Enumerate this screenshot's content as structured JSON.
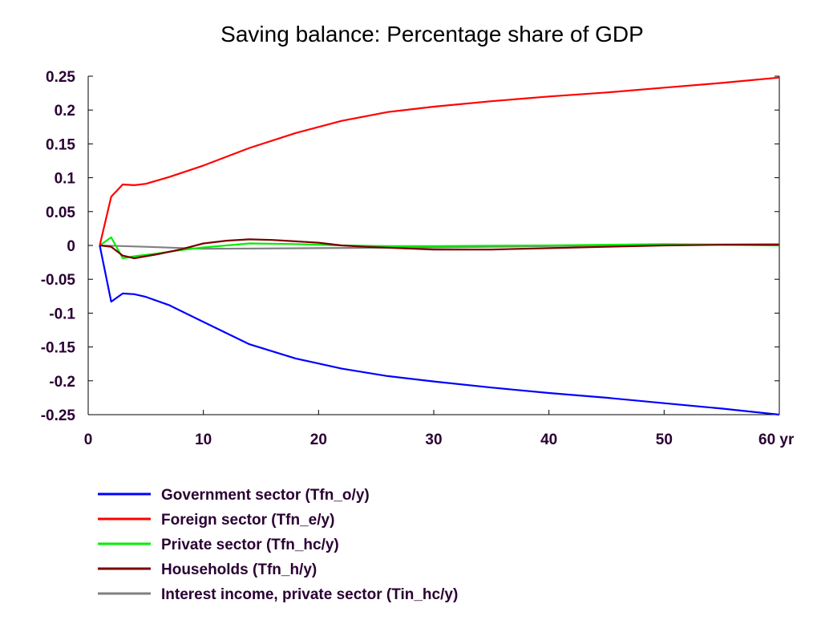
{
  "chart_data": {
    "type": "line",
    "title": "Saving balance: Percentage share of GDP",
    "xlabel": "",
    "ylabel": "",
    "x_unit_label": "yr",
    "xlim": [
      0,
      60
    ],
    "ylim": [
      -0.25,
      0.25
    ],
    "x_ticks": [
      0,
      10,
      20,
      30,
      40,
      50,
      60
    ],
    "y_ticks": [
      0.25,
      0.2,
      0.15,
      0.1,
      0.05,
      0,
      -0.05,
      -0.1,
      -0.15,
      -0.2,
      -0.25
    ],
    "x_tick_labels": [
      "0",
      "10",
      "20",
      "30",
      "40",
      "50",
      "60 yr"
    ],
    "y_tick_labels": [
      "0.25",
      "0.2",
      "0.15",
      "0.1",
      "0.05",
      "0",
      "-0.05",
      "-0.1",
      "-0.15",
      "-0.2",
      "-0.25"
    ],
    "grid": false,
    "legend_position": "bottom",
    "series": [
      {
        "name": "Government sector (Tfn_o/y)",
        "color": "#0000ff",
        "x": [
          1,
          2,
          3,
          4,
          5,
          7,
          10,
          14,
          18,
          22,
          26,
          30,
          35,
          40,
          45,
          50,
          55,
          60
        ],
        "y": [
          0,
          -0.083,
          -0.071,
          -0.072,
          -0.076,
          -0.088,
          -0.113,
          -0.146,
          -0.167,
          -0.182,
          -0.193,
          -0.201,
          -0.21,
          -0.218,
          -0.225,
          -0.233,
          -0.241,
          -0.25
        ]
      },
      {
        "name": "Foreign sector (Tfn_e/y)",
        "color": "#ff0000",
        "x": [
          1,
          2,
          3,
          4,
          5,
          7,
          10,
          14,
          18,
          22,
          26,
          30,
          35,
          40,
          45,
          50,
          55,
          60
        ],
        "y": [
          0,
          0.072,
          0.09,
          0.089,
          0.091,
          0.101,
          0.118,
          0.144,
          0.166,
          0.184,
          0.197,
          0.205,
          0.213,
          0.22,
          0.226,
          0.233,
          0.24,
          0.248
        ]
      },
      {
        "name": "Private sector (Tfn_hc/y)",
        "color": "#00ee00",
        "x": [
          1,
          2,
          3,
          4,
          6,
          8,
          10,
          14,
          18,
          22,
          26,
          30,
          40,
          50,
          60
        ],
        "y": [
          0,
          0.012,
          -0.019,
          -0.016,
          -0.012,
          -0.007,
          -0.003,
          0.003,
          0.002,
          0.0,
          -0.001,
          -0.001,
          0.0,
          0.002,
          0.0
        ]
      },
      {
        "name": "Households (Tfn_h/y)",
        "color": "#7a0000",
        "x": [
          1,
          2,
          3,
          4,
          6,
          8,
          10,
          12,
          14,
          16,
          18,
          20,
          22,
          24,
          27,
          30,
          35,
          40,
          45,
          50,
          55,
          60
        ],
        "y": [
          0,
          -0.002,
          -0.015,
          -0.019,
          -0.013,
          -0.006,
          0.003,
          0.007,
          0.009,
          0.008,
          0.006,
          0.004,
          0.0,
          -0.002,
          -0.004,
          -0.006,
          -0.006,
          -0.004,
          -0.002,
          0.0,
          0.001,
          0.001
        ]
      },
      {
        "name": "Interest income, private sector (Tin_hc/y)",
        "color": "#808080",
        "x": [
          1,
          5,
          10,
          20,
          30,
          40,
          50,
          60
        ],
        "y": [
          0,
          -0.002,
          -0.005,
          -0.004,
          -0.003,
          -0.001,
          0.001,
          0.002
        ]
      }
    ]
  }
}
